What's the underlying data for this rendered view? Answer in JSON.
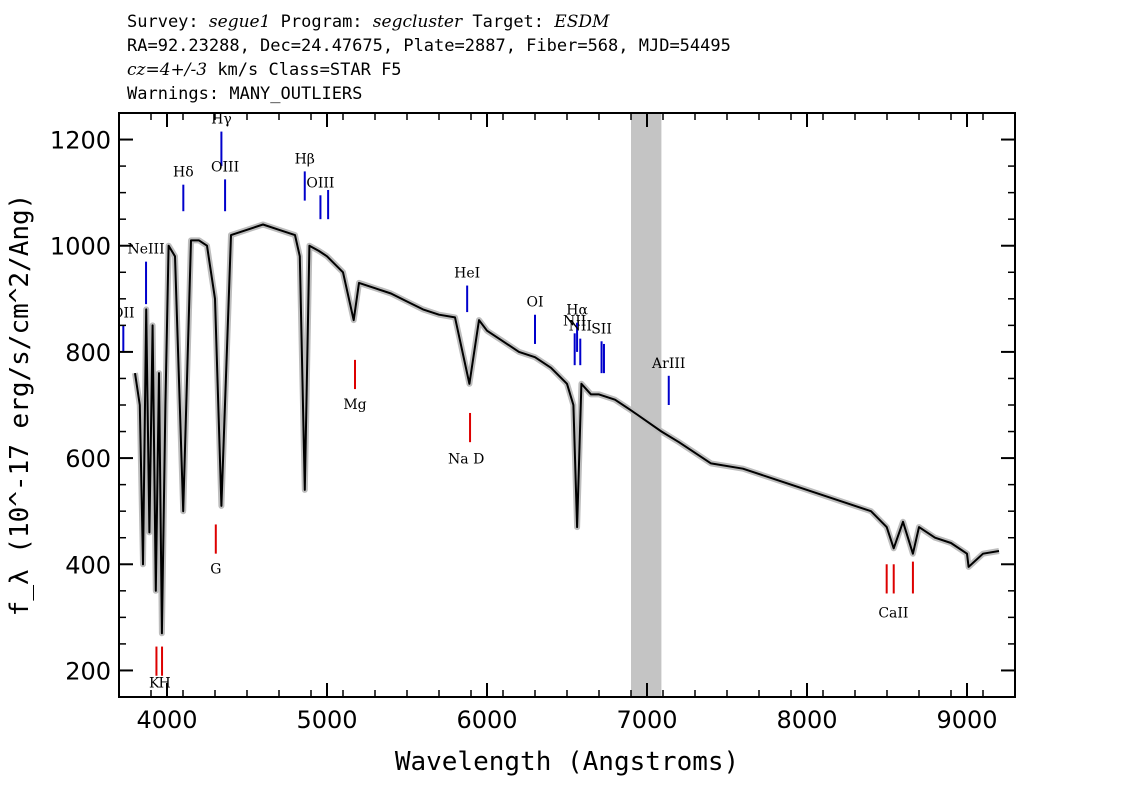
{
  "header": {
    "survey_label": "Survey:",
    "survey": "segue1",
    "program_label": "Program:",
    "program": "segcluster",
    "target_label": "Target:",
    "target": "ESDM",
    "line2": "RA=92.23288, Dec=24.47675, Plate=2887, Fiber=568, MJD=54495",
    "cz": "cz=4+/-3",
    "line3_rest": " km/s Class=STAR F5",
    "line4": "Warnings: MANY_OUTLIERS"
  },
  "chart_data": {
    "type": "line",
    "xlabel": "Wavelength (Angstroms)",
    "ylabel": "f_λ (10^-17 erg/s/cm^2/Ang)",
    "xlim": [
      3700,
      9300
    ],
    "ylim": [
      150,
      1250
    ],
    "xticks": [
      4000,
      5000,
      6000,
      7000,
      8000,
      9000
    ],
    "yticks": [
      200,
      400,
      600,
      800,
      1000,
      1200
    ],
    "masked_region": [
      6900,
      7090
    ],
    "series": [
      {
        "x": [
          3800,
          3830,
          3850,
          3870,
          3890,
          3910,
          3930,
          3950,
          3968,
          3990,
          4010,
          4050,
          4101,
          4150,
          4200,
          4250,
          4300,
          4340,
          4400,
          4500,
          4600,
          4700,
          4800,
          4830,
          4861,
          4890,
          4950,
          5000,
          5100,
          5167,
          5200,
          5300,
          5400,
          5500,
          5600,
          5700,
          5800,
          5890,
          5950,
          6000,
          6100,
          6200,
          6300,
          6400,
          6500,
          6540,
          6563,
          6590,
          6650,
          6700,
          6800,
          6900,
          7090,
          7200,
          7400,
          7600,
          7800,
          8000,
          8200,
          8400,
          8498,
          8542,
          8600,
          8662,
          8700,
          8800,
          8900,
          9000,
          9010,
          9100,
          9200
        ],
        "y": [
          760,
          700,
          400,
          880,
          460,
          850,
          350,
          760,
          270,
          700,
          1000,
          980,
          500,
          1010,
          1010,
          1000,
          900,
          510,
          1020,
          1030,
          1040,
          1030,
          1020,
          980,
          540,
          1000,
          990,
          980,
          950,
          860,
          930,
          920,
          910,
          895,
          880,
          870,
          865,
          740,
          860,
          840,
          820,
          800,
          790,
          770,
          740,
          700,
          470,
          740,
          720,
          720,
          710,
          690,
          650,
          630,
          590,
          580,
          560,
          540,
          520,
          500,
          470,
          430,
          480,
          420,
          470,
          450,
          440,
          420,
          395,
          420,
          425
        ]
      }
    ],
    "lines_blue": [
      {
        "label": "OII",
        "x": 3727,
        "y1": 800,
        "y2": 850
      },
      {
        "label": "NeIII",
        "x": 3869,
        "y1": 890,
        "y2": 970
      },
      {
        "label": "Hδ",
        "x": 4102,
        "y1": 1065,
        "y2": 1115
      },
      {
        "label": "Hγ",
        "x": 4340,
        "y1": 1150,
        "y2": 1215
      },
      {
        "label": "OIII",
        "x": 4363,
        "y1": 1065,
        "y2": 1125
      },
      {
        "label": "Hβ",
        "x": 4861,
        "y1": 1085,
        "y2": 1140
      },
      {
        "label": "OIII",
        "x": 4959,
        "y1": 1050,
        "y2": 1095
      },
      {
        "label": "",
        "x": 5007,
        "y1": 1050,
        "y2": 1105
      },
      {
        "label": "HeI",
        "x": 5876,
        "y1": 875,
        "y2": 925
      },
      {
        "label": "OI",
        "x": 6300,
        "y1": 815,
        "y2": 870
      },
      {
        "label": "NII",
        "x": 6548,
        "y1": 775,
        "y2": 835
      },
      {
        "label": "Hα",
        "x": 6563,
        "y1": 800,
        "y2": 855
      },
      {
        "label": "NII",
        "x": 6583,
        "y1": 775,
        "y2": 825
      },
      {
        "label": "SII",
        "x": 6716,
        "y1": 760,
        "y2": 820
      },
      {
        "label": "",
        "x": 6731,
        "y1": 760,
        "y2": 815
      },
      {
        "label": "ArIII",
        "x": 7136,
        "y1": 700,
        "y2": 755
      }
    ],
    "lines_red": [
      {
        "label": "",
        "x": 3934,
        "y1": 190,
        "y2": 245
      },
      {
        "label": "",
        "x": 3969,
        "y1": 190,
        "y2": 245
      },
      {
        "label": "G",
        "x": 4305,
        "y1": 420,
        "y2": 475
      },
      {
        "label": "Mg",
        "x": 5175,
        "y1": 730,
        "y2": 785
      },
      {
        "label": "",
        "x": 5894,
        "y1": 630,
        "y2": 685
      },
      {
        "label": "",
        "x": 8498,
        "y1": 345,
        "y2": 400
      },
      {
        "label": "",
        "x": 8542,
        "y1": 345,
        "y2": 400
      },
      {
        "label": "",
        "x": 8662,
        "y1": 345,
        "y2": 405
      }
    ],
    "red_labels": [
      {
        "text": "K",
        "x": 3920,
        "y": 168
      },
      {
        "text": "H",
        "x": 3985,
        "y": 168
      },
      {
        "text": "Na D",
        "x": 5870,
        "y": 590
      },
      {
        "text": "CaII",
        "x": 8540,
        "y": 300
      }
    ],
    "colors": {
      "spectrum": "#000000",
      "error_band": "#bdbdbd",
      "mask": "#c4c4c4",
      "emission": "#0000cc",
      "absorption": "#dd0000"
    }
  }
}
